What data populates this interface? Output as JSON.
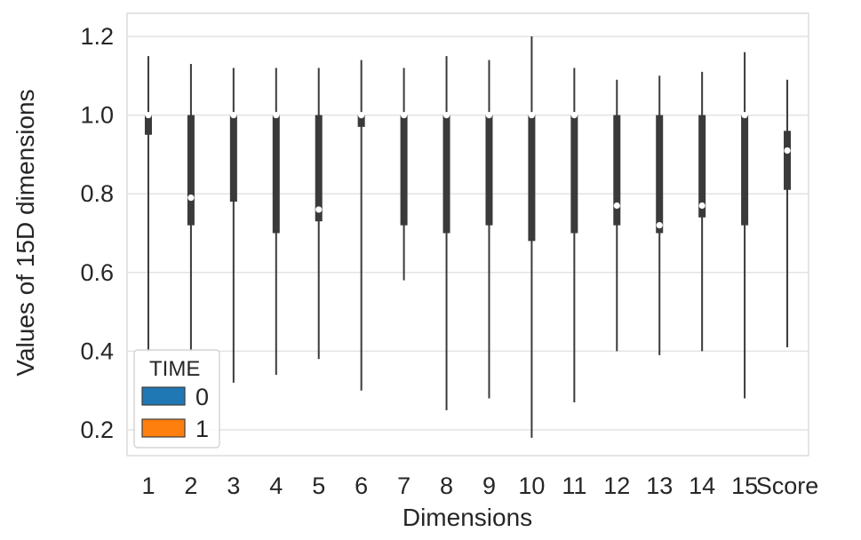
{
  "chart_data": {
    "type": "violin",
    "split": true,
    "title": "",
    "xlabel": "Dimensions",
    "ylabel": "Values of 15D dimensions",
    "ylim": [
      0.15,
      1.25
    ],
    "yticks": [
      0.2,
      0.4,
      0.6,
      0.8,
      1.0,
      1.2
    ],
    "ytick_labels": [
      "0.2",
      "0.4",
      "0.6",
      "0.8",
      "1.0",
      "1.2"
    ],
    "categories": [
      "1",
      "2",
      "3",
      "4",
      "5",
      "6",
      "7",
      "8",
      "9",
      "10",
      "11",
      "12",
      "13",
      "14",
      "15",
      "Score"
    ],
    "grid": true,
    "legend": {
      "title": "TIME",
      "position": "lower-left",
      "entries": [
        {
          "label": "0",
          "color": "#1f77b4"
        },
        {
          "label": "1",
          "color": "#ff7f0e"
        }
      ]
    },
    "series": [
      {
        "name": "0",
        "color": "#1f77b4",
        "ymin": [
          0.4,
          0.45,
          0.35,
          0.4,
          0.4,
          0.3,
          0.62,
          0.25,
          0.28,
          0.2,
          0.27,
          0.6,
          0.45,
          0.52,
          0.28,
          0.45
        ],
        "ymax": [
          1.12,
          1.13,
          1.12,
          1.12,
          1.12,
          1.13,
          1.1,
          1.13,
          1.13,
          1.15,
          1.12,
          1.09,
          1.1,
          1.11,
          1.14,
          1.09
        ],
        "modes": [
          [
            1.0,
            1.0
          ],
          [
            1.0,
            0.35
          ],
          [
            1.0,
            0.9
          ],
          [
            1.0,
            0.9
          ],
          [
            1.0,
            0.9
          ],
          [
            1.0,
            1.0
          ],
          [
            1.0,
            1.0
          ],
          [
            1.0,
            0.85
          ],
          [
            0.75,
            0.9
          ],
          [
            1.0,
            0.7
          ],
          [
            1.0,
            0.45
          ],
          [
            1.0,
            0.9
          ],
          [
            1.0,
            0.85
          ],
          [
            1.0,
            0.95
          ],
          [
            1.0,
            0.95
          ],
          [
            0.93,
            1.0
          ]
        ]
      },
      {
        "name": "1",
        "color": "#ff7f0e",
        "ymin": [
          0.55,
          0.4,
          0.32,
          0.34,
          0.38,
          0.55,
          0.58,
          0.45,
          0.55,
          0.18,
          0.5,
          0.4,
          0.39,
          0.4,
          0.45,
          0.41
        ],
        "ymax": [
          1.15,
          1.0,
          1.1,
          1.1,
          1.08,
          1.14,
          1.12,
          1.15,
          1.14,
          1.2,
          1.0,
          1.0,
          1.0,
          1.0,
          1.16,
          1.0
        ],
        "modes": [
          [
            1.0,
            1.0
          ],
          [
            0.79,
            1.0
          ],
          [
            0.75,
            0.8
          ],
          [
            0.7,
            1.0
          ],
          [
            0.76,
            0.8
          ],
          [
            1.0,
            1.0
          ],
          [
            0.72,
            0.7
          ],
          [
            0.7,
            1.0
          ],
          [
            1.0,
            1.0
          ],
          [
            1.0,
            1.0
          ],
          [
            0.72,
            1.0
          ],
          [
            0.76,
            1.0
          ],
          [
            0.72,
            1.0
          ],
          [
            0.78,
            1.0
          ],
          [
            1.0,
            0.9
          ],
          [
            0.9,
            1.0
          ]
        ]
      }
    ],
    "medians": [
      1.0,
      0.79,
      1.0,
      1.0,
      0.76,
      1.0,
      1.0,
      1.0,
      1.0,
      1.0,
      1.0,
      0.77,
      0.72,
      0.77,
      1.0,
      0.91
    ],
    "quartiles": [
      [
        0.95,
        1.0
      ],
      [
        0.72,
        1.0
      ],
      [
        0.78,
        1.0
      ],
      [
        0.7,
        1.0
      ],
      [
        0.73,
        1.0
      ],
      [
        0.97,
        1.0
      ],
      [
        0.72,
        1.0
      ],
      [
        0.7,
        1.0
      ],
      [
        0.72,
        1.0
      ],
      [
        0.68,
        1.0
      ],
      [
        0.7,
        1.0
      ],
      [
        0.72,
        1.0
      ],
      [
        0.7,
        1.0
      ],
      [
        0.74,
        1.0
      ],
      [
        0.72,
        1.0
      ],
      [
        0.81,
        0.96
      ]
    ]
  }
}
